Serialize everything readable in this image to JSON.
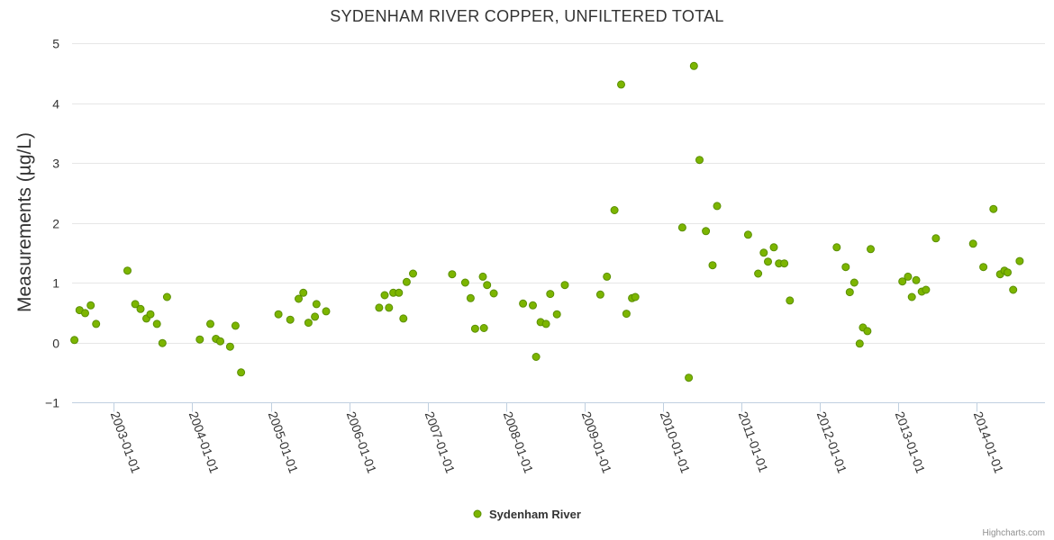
{
  "chart_data": {
    "type": "scatter",
    "title": "SYDENHAM RIVER COPPER, UNFILTERED TOTAL",
    "ylabel": "Measurements (µg/L)",
    "xlabel": "",
    "ylim": [
      -1,
      5
    ],
    "yticks": [
      -1,
      0,
      1,
      2,
      3,
      4,
      5
    ],
    "ytick_labels": [
      "−1",
      "0",
      "1",
      "2",
      "3",
      "4",
      "5"
    ],
    "xlim": [
      "2002-06-20",
      "2014-11-15"
    ],
    "xticks": [
      "2003-01-01",
      "2004-01-01",
      "2005-01-01",
      "2006-01-01",
      "2007-01-01",
      "2008-01-01",
      "2009-01-01",
      "2010-01-01",
      "2011-01-01",
      "2012-01-01",
      "2013-01-01",
      "2014-01-01"
    ],
    "grid": true,
    "legend_position": "bottom-center",
    "color": "#7cb500",
    "series": [
      {
        "name": "Sydenham River",
        "points": [
          [
            "2002-07-01",
            0.04
          ],
          [
            "2002-07-25",
            0.54
          ],
          [
            "2002-08-20",
            0.49
          ],
          [
            "2002-09-15",
            0.62
          ],
          [
            "2002-10-10",
            0.31
          ],
          [
            "2003-03-05",
            1.2
          ],
          [
            "2003-04-10",
            0.64
          ],
          [
            "2003-05-05",
            0.56
          ],
          [
            "2003-06-01",
            0.4
          ],
          [
            "2003-06-20",
            0.47
          ],
          [
            "2003-07-20",
            0.31
          ],
          [
            "2003-08-15",
            -0.01
          ],
          [
            "2003-09-05",
            0.76
          ],
          [
            "2004-02-05",
            0.05
          ],
          [
            "2004-03-25",
            0.31
          ],
          [
            "2004-04-20",
            0.06
          ],
          [
            "2004-05-10",
            0.02
          ],
          [
            "2004-06-25",
            -0.07
          ],
          [
            "2004-07-20",
            0.28
          ],
          [
            "2004-08-15",
            -0.5
          ],
          [
            "2005-02-05",
            0.47
          ],
          [
            "2005-04-01",
            0.38
          ],
          [
            "2005-05-10",
            0.73
          ],
          [
            "2005-06-01",
            0.83
          ],
          [
            "2005-06-25",
            0.33
          ],
          [
            "2005-07-25",
            0.43
          ],
          [
            "2005-08-01",
            0.64
          ],
          [
            "2005-09-15",
            0.52
          ],
          [
            "2006-05-20",
            0.58
          ],
          [
            "2006-06-15",
            0.79
          ],
          [
            "2006-07-05",
            0.58
          ],
          [
            "2006-07-25",
            0.83
          ],
          [
            "2006-08-20",
            0.83
          ],
          [
            "2006-09-10",
            0.4
          ],
          [
            "2006-09-25",
            1.01
          ],
          [
            "2006-10-25",
            1.15
          ],
          [
            "2007-04-25",
            1.14
          ],
          [
            "2007-06-25",
            1.0
          ],
          [
            "2007-07-20",
            0.74
          ],
          [
            "2007-08-10",
            0.23
          ],
          [
            "2007-09-15",
            1.1
          ],
          [
            "2007-09-20",
            0.24
          ],
          [
            "2007-10-05",
            0.96
          ],
          [
            "2007-11-05",
            0.82
          ],
          [
            "2008-03-20",
            0.65
          ],
          [
            "2008-05-05",
            0.62
          ],
          [
            "2008-05-20",
            -0.24
          ],
          [
            "2008-06-10",
            0.34
          ],
          [
            "2008-07-05",
            0.31
          ],
          [
            "2008-07-25",
            0.81
          ],
          [
            "2008-08-25",
            0.47
          ],
          [
            "2008-10-01",
            0.96
          ],
          [
            "2009-03-15",
            0.8
          ],
          [
            "2009-04-15",
            1.1
          ],
          [
            "2009-05-20",
            2.21
          ],
          [
            "2009-06-20",
            4.31
          ],
          [
            "2009-07-15",
            0.48
          ],
          [
            "2009-08-10",
            0.74
          ],
          [
            "2009-08-25",
            0.76
          ],
          [
            "2010-04-01",
            1.92
          ],
          [
            "2010-05-01",
            -0.59
          ],
          [
            "2010-05-25",
            4.62
          ],
          [
            "2010-06-20",
            3.05
          ],
          [
            "2010-07-20",
            1.86
          ],
          [
            "2010-08-20",
            1.29
          ],
          [
            "2010-09-10",
            2.28
          ],
          [
            "2011-02-01",
            1.8
          ],
          [
            "2011-03-20",
            1.15
          ],
          [
            "2011-04-15",
            1.5
          ],
          [
            "2011-05-05",
            1.35
          ],
          [
            "2011-06-01",
            1.59
          ],
          [
            "2011-06-25",
            1.32
          ],
          [
            "2011-07-20",
            1.32
          ],
          [
            "2011-08-15",
            0.7
          ],
          [
            "2012-03-20",
            1.59
          ],
          [
            "2012-05-01",
            1.26
          ],
          [
            "2012-05-20",
            0.84
          ],
          [
            "2012-06-10",
            1.0
          ],
          [
            "2012-07-05",
            -0.02
          ],
          [
            "2012-07-20",
            0.25
          ],
          [
            "2012-08-10",
            0.19
          ],
          [
            "2012-08-25",
            1.56
          ],
          [
            "2013-01-20",
            1.02
          ],
          [
            "2013-02-15",
            1.1
          ],
          [
            "2013-03-05",
            0.76
          ],
          [
            "2013-03-25",
            1.04
          ],
          [
            "2013-04-20",
            0.85
          ],
          [
            "2013-05-10",
            0.88
          ],
          [
            "2013-06-25",
            1.74
          ],
          [
            "2013-12-15",
            1.65
          ],
          [
            "2014-02-01",
            1.26
          ],
          [
            "2014-03-20",
            2.23
          ],
          [
            "2014-04-20",
            1.14
          ],
          [
            "2014-05-10",
            1.2
          ],
          [
            "2014-05-25",
            1.17
          ],
          [
            "2014-06-20",
            0.88
          ],
          [
            "2014-07-20",
            1.36
          ]
        ]
      }
    ],
    "credits": "Highcharts.com"
  }
}
